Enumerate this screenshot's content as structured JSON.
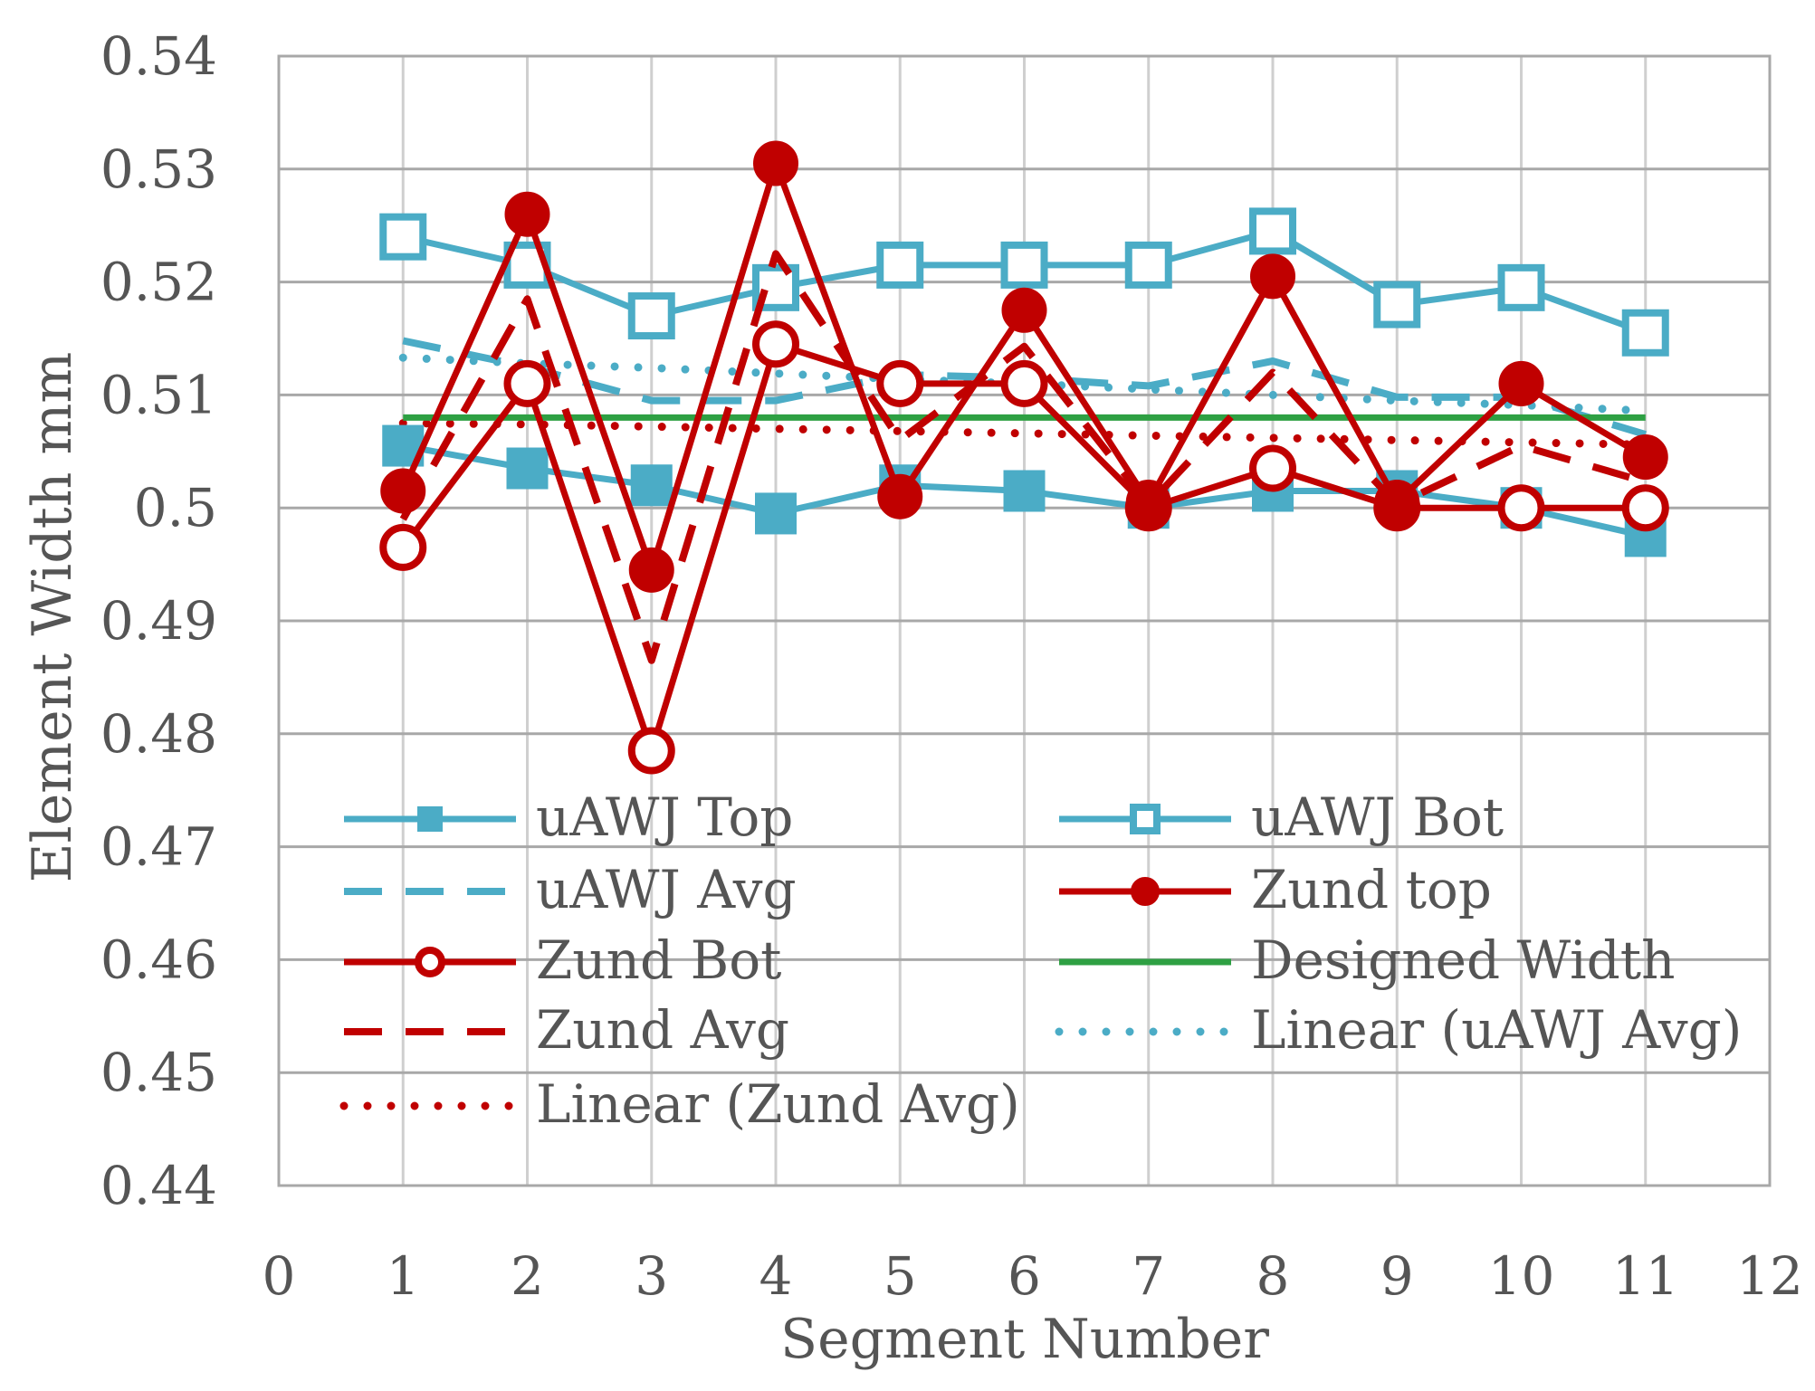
{
  "chart_data": {
    "type": "line",
    "title": "",
    "xlabel": "Segment Number",
    "ylabel": "Element Width mm",
    "xlim": [
      0,
      12
    ],
    "ylim": [
      0.44,
      0.54
    ],
    "x_ticks": [
      "0",
      "1",
      "2",
      "3",
      "4",
      "5",
      "6",
      "7",
      "8",
      "9",
      "10",
      "11",
      "12"
    ],
    "y_ticks": [
      "0.54",
      "0.53",
      "0.52",
      "0.51",
      "0.5",
      "0.49",
      "0.48",
      "0.47",
      "0.46",
      "0.45",
      "0.44"
    ],
    "grid": true,
    "legend_position": "inside-bottom",
    "x": [
      1,
      2,
      3,
      4,
      5,
      6,
      7,
      8,
      9,
      10,
      11
    ],
    "series": [
      {
        "name": "uAWJ Top",
        "color": "#4BACC6",
        "style": "solid",
        "marker": "filled-square",
        "values": [
          0.5055,
          0.5035,
          0.502,
          0.4995,
          0.502,
          0.5015,
          0.5,
          0.5015,
          0.5015,
          0.5,
          0.4975
        ]
      },
      {
        "name": "uAWJ Bot",
        "color": "#4BACC6",
        "style": "solid",
        "marker": "open-square",
        "values": [
          0.524,
          0.5215,
          0.517,
          0.5195,
          0.5215,
          0.5215,
          0.5215,
          0.5245,
          0.518,
          0.5195,
          0.5155
        ]
      },
      {
        "name": "uAWJ Avg",
        "color": "#4BACC6",
        "style": "dashed",
        "marker": "none",
        "values": [
          0.5148,
          0.5125,
          0.5095,
          0.5095,
          0.5118,
          0.5115,
          0.5108,
          0.513,
          0.5098,
          0.5098,
          0.5065
        ]
      },
      {
        "name": "Zund top",
        "color": "#C00000",
        "style": "solid",
        "marker": "filled-circle",
        "values": [
          0.5015,
          0.526,
          0.4945,
          0.5305,
          0.501,
          0.5175,
          0.5005,
          0.5205,
          0.5005,
          0.511,
          0.5045
        ]
      },
      {
        "name": "Zund Bot",
        "color": "#C00000",
        "style": "solid",
        "marker": "open-circle",
        "values": [
          0.4965,
          0.511,
          0.4785,
          0.5145,
          0.511,
          0.511,
          0.5,
          0.5035,
          0.5,
          0.5,
          0.5
        ]
      },
      {
        "name": "Designed Width",
        "color": "#2EA043",
        "style": "solid",
        "marker": "none",
        "values": [
          0.508,
          0.508,
          0.508,
          0.508,
          0.508,
          0.508,
          0.508,
          0.508,
          0.508,
          0.508,
          0.508
        ]
      },
      {
        "name": "Zund Avg",
        "color": "#C00000",
        "style": "dashed",
        "marker": "none",
        "values": [
          0.499,
          0.5185,
          0.4865,
          0.5225,
          0.506,
          0.5143,
          0.5003,
          0.512,
          0.5003,
          0.5055,
          0.5023
        ]
      },
      {
        "name": "Linear (uAWJ Avg)",
        "color": "#4BACC6",
        "style": "dotted",
        "marker": "none",
        "values": [
          0.5133,
          0.5128,
          0.5124,
          0.5119,
          0.5114,
          0.511,
          0.5105,
          0.51,
          0.5095,
          0.5091,
          0.5086
        ]
      },
      {
        "name": "Linear (Zund Avg)",
        "color": "#C00000",
        "style": "dotted",
        "marker": "none",
        "values": [
          0.5075,
          0.5074,
          0.5072,
          0.507,
          0.5068,
          0.5066,
          0.5064,
          0.5062,
          0.506,
          0.5058,
          0.5056
        ]
      }
    ],
    "legend": [
      "uAWJ Top",
      "uAWJ Bot",
      "uAWJ Avg",
      "Zund top",
      "Zund Bot",
      "Designed Width",
      "Zund Avg",
      "Linear (uAWJ Avg)",
      "Linear (Zund Avg)"
    ]
  }
}
